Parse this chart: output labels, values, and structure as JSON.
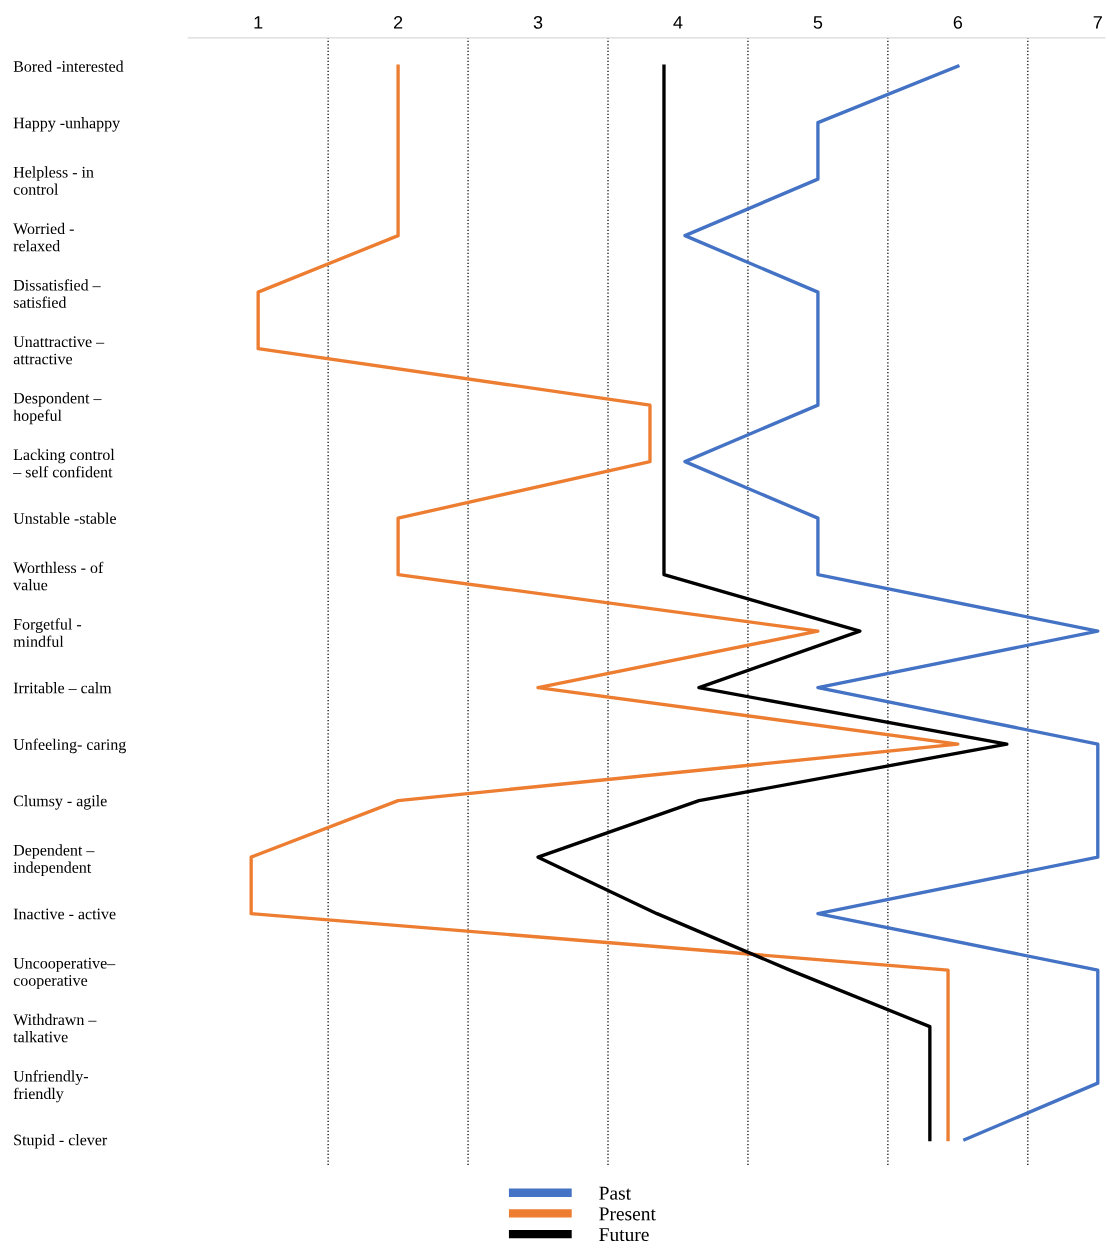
{
  "chart_data": {
    "type": "line",
    "orientation": "horizontal",
    "categories": [
      "Bored -interested",
      "Happy -unhappy",
      "Helpless - in\ncontrol",
      "Worried -\nrelaxed",
      "Dissatisfied –\nsatisfied",
      "Unattractive –\nattractive",
      "Despondent –\nhopeful",
      "Lacking control\n– self confident",
      "Unstable -stable",
      "Worthless - of\nvalue",
      "Forgetful -\nmindful",
      "Irritable – calm",
      "Unfeeling- caring",
      "Clumsy - agile",
      "Dependent –\nindependent",
      "Inactive - active",
      "Uncooperative–\ncooperative",
      "Withdrawn –\ntalkative",
      "Unfriendly-\nfriendly",
      "Stupid - clever"
    ],
    "series": [
      {
        "name": "Past",
        "color": "#4472c4",
        "values": [
          6,
          5,
          5,
          4.05,
          5,
          5,
          5,
          4.05,
          5,
          5,
          7,
          5,
          7,
          7,
          7,
          5,
          7,
          7,
          7,
          6.05
        ]
      },
      {
        "name": "Present",
        "color": "#ed7d31",
        "values": [
          2,
          2,
          2,
          2,
          1,
          1,
          3.8,
          3.8,
          2,
          2,
          5,
          3,
          6,
          2,
          0.95,
          0.95,
          5.93,
          5.93,
          5.93,
          5.93
        ]
      },
      {
        "name": "Future",
        "color": "#000000",
        "values": [
          3.9,
          3.9,
          3.9,
          3.9,
          3.9,
          3.9,
          3.9,
          3.9,
          3.9,
          3.9,
          5.3,
          4.15,
          6.35,
          4.15,
          3,
          3.85,
          4.8,
          5.8,
          5.8,
          5.8
        ]
      }
    ],
    "xlim": [
      0.5,
      7.05
    ],
    "xticks": [
      1,
      2,
      3,
      4,
      5,
      6,
      7
    ],
    "ref_lines": [
      {
        "axis": "x",
        "value": 1.5,
        "color": "#000000",
        "line_style": "dotted"
      },
      {
        "axis": "x",
        "value": 2.5,
        "color": "#000000",
        "line_style": "dotted"
      },
      {
        "axis": "x",
        "value": 3.5,
        "color": "#000000",
        "line_style": "dotted"
      },
      {
        "axis": "x",
        "value": 4.5,
        "color": "#000000",
        "line_style": "dotted"
      },
      {
        "axis": "x",
        "value": 5.5,
        "color": "#000000",
        "line_style": "dotted"
      },
      {
        "axis": "x",
        "value": 6.5,
        "color": "#000000",
        "line_style": "dotted"
      }
    ],
    "grid": false,
    "legend": "bottom",
    "marker": "none",
    "line_style": "solid"
  }
}
